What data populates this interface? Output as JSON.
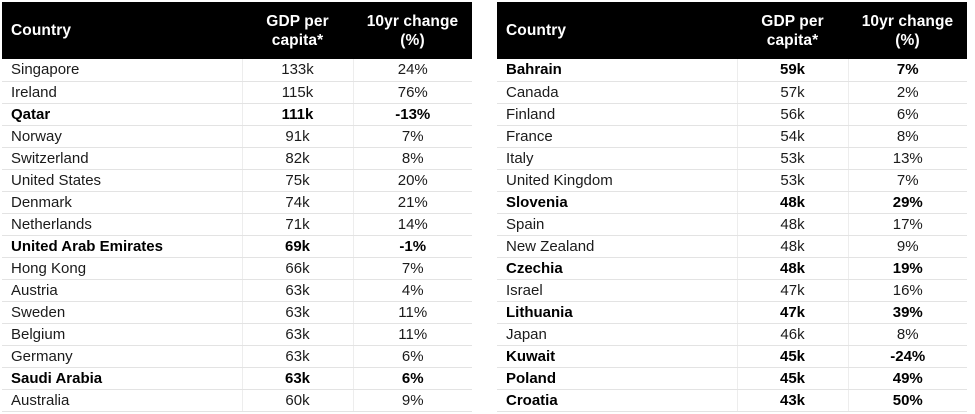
{
  "header": {
    "country": "Country",
    "gdp": "GDP per\ncapita*",
    "change": "10yr change\n(%)"
  },
  "colors": {
    "header_bg": "#000000",
    "header_text": "#ffffff",
    "row_border": "#e3e3e3",
    "column_border": "#ededed",
    "body_text": "#1b1b1b"
  },
  "tables": [
    {
      "rows": [
        {
          "country": "Singapore",
          "gdp": "133k",
          "change": "24%",
          "bold": false
        },
        {
          "country": "Ireland",
          "gdp": "115k",
          "change": "76%",
          "bold": false
        },
        {
          "country": "Qatar",
          "gdp": "111k",
          "change": "-13%",
          "bold": true
        },
        {
          "country": "Norway",
          "gdp": "91k",
          "change": "7%",
          "bold": false
        },
        {
          "country": "Switzerland",
          "gdp": "82k",
          "change": "8%",
          "bold": false
        },
        {
          "country": "United States",
          "gdp": "75k",
          "change": "20%",
          "bold": false
        },
        {
          "country": "Denmark",
          "gdp": "74k",
          "change": "21%",
          "bold": false
        },
        {
          "country": "Netherlands",
          "gdp": "71k",
          "change": "14%",
          "bold": false
        },
        {
          "country": "United Arab Emirates",
          "gdp": "69k",
          "change": "-1%",
          "bold": true
        },
        {
          "country": "Hong Kong",
          "gdp": "66k",
          "change": "7%",
          "bold": false
        },
        {
          "country": "Austria",
          "gdp": "63k",
          "change": "4%",
          "bold": false
        },
        {
          "country": "Sweden",
          "gdp": "63k",
          "change": "11%",
          "bold": false
        },
        {
          "country": "Belgium",
          "gdp": "63k",
          "change": "11%",
          "bold": false
        },
        {
          "country": "Germany",
          "gdp": "63k",
          "change": "6%",
          "bold": false
        },
        {
          "country": "Saudi Arabia",
          "gdp": "63k",
          "change": "6%",
          "bold": true
        },
        {
          "country": "Australia",
          "gdp": "60k",
          "change": "9%",
          "bold": false
        }
      ]
    },
    {
      "rows": [
        {
          "country": "Bahrain",
          "gdp": "59k",
          "change": "7%",
          "bold": true
        },
        {
          "country": "Canada",
          "gdp": "57k",
          "change": "2%",
          "bold": false
        },
        {
          "country": "Finland",
          "gdp": "56k",
          "change": "6%",
          "bold": false
        },
        {
          "country": "France",
          "gdp": "54k",
          "change": "8%",
          "bold": false
        },
        {
          "country": "Italy",
          "gdp": "53k",
          "change": "13%",
          "bold": false
        },
        {
          "country": "United Kingdom",
          "gdp": "53k",
          "change": "7%",
          "bold": false
        },
        {
          "country": "Slovenia",
          "gdp": "48k",
          "change": "29%",
          "bold": true
        },
        {
          "country": "Spain",
          "gdp": "48k",
          "change": "17%",
          "bold": false
        },
        {
          "country": "New Zealand",
          "gdp": "48k",
          "change": "9%",
          "bold": false
        },
        {
          "country": "Czechia",
          "gdp": "48k",
          "change": "19%",
          "bold": true
        },
        {
          "country": "Israel",
          "gdp": "47k",
          "change": "16%",
          "bold": false
        },
        {
          "country": "Lithuania",
          "gdp": "47k",
          "change": "39%",
          "bold": true
        },
        {
          "country": "Japan",
          "gdp": "46k",
          "change": "8%",
          "bold": false
        },
        {
          "country": "Kuwait",
          "gdp": "45k",
          "change": "-24%",
          "bold": true
        },
        {
          "country": "Poland",
          "gdp": "45k",
          "change": "49%",
          "bold": true
        },
        {
          "country": "Croatia",
          "gdp": "43k",
          "change": "50%",
          "bold": true
        }
      ]
    }
  ],
  "chart_data": [
    {
      "type": "table",
      "title": "",
      "columns": [
        "Country",
        "GDP per capita*",
        "10yr change (%)"
      ],
      "rows": [
        [
          "Singapore",
          "133k",
          "24%"
        ],
        [
          "Ireland",
          "115k",
          "76%"
        ],
        [
          "Qatar",
          "111k",
          "-13%"
        ],
        [
          "Norway",
          "91k",
          "7%"
        ],
        [
          "Switzerland",
          "82k",
          "8%"
        ],
        [
          "United States",
          "75k",
          "20%"
        ],
        [
          "Denmark",
          "74k",
          "21%"
        ],
        [
          "Netherlands",
          "71k",
          "14%"
        ],
        [
          "United Arab Emirates",
          "69k",
          "-1%"
        ],
        [
          "Hong Kong",
          "66k",
          "7%"
        ],
        [
          "Austria",
          "63k",
          "4%"
        ],
        [
          "Sweden",
          "63k",
          "11%"
        ],
        [
          "Belgium",
          "63k",
          "11%"
        ],
        [
          "Germany",
          "63k",
          "6%"
        ],
        [
          "Saudi Arabia",
          "63k",
          "6%"
        ],
        [
          "Australia",
          "60k",
          "9%"
        ]
      ],
      "bold_rows": [
        "Qatar",
        "United Arab Emirates",
        "Saudi Arabia"
      ]
    },
    {
      "type": "table",
      "title": "",
      "columns": [
        "Country",
        "GDP per capita*",
        "10yr change (%)"
      ],
      "rows": [
        [
          "Bahrain",
          "59k",
          "7%"
        ],
        [
          "Canada",
          "57k",
          "2%"
        ],
        [
          "Finland",
          "56k",
          "6%"
        ],
        [
          "France",
          "54k",
          "8%"
        ],
        [
          "Italy",
          "53k",
          "13%"
        ],
        [
          "United Kingdom",
          "53k",
          "7%"
        ],
        [
          "Slovenia",
          "48k",
          "29%"
        ],
        [
          "Spain",
          "48k",
          "17%"
        ],
        [
          "New Zealand",
          "48k",
          "9%"
        ],
        [
          "Czechia",
          "48k",
          "19%"
        ],
        [
          "Israel",
          "47k",
          "16%"
        ],
        [
          "Lithuania",
          "47k",
          "39%"
        ],
        [
          "Japan",
          "46k",
          "8%"
        ],
        [
          "Kuwait",
          "45k",
          "-24%"
        ],
        [
          "Poland",
          "45k",
          "49%"
        ],
        [
          "Croatia",
          "43k",
          "50%"
        ]
      ],
      "bold_rows": [
        "Bahrain",
        "Slovenia",
        "Czechia",
        "Lithuania",
        "Kuwait",
        "Poland",
        "Croatia"
      ]
    }
  ]
}
